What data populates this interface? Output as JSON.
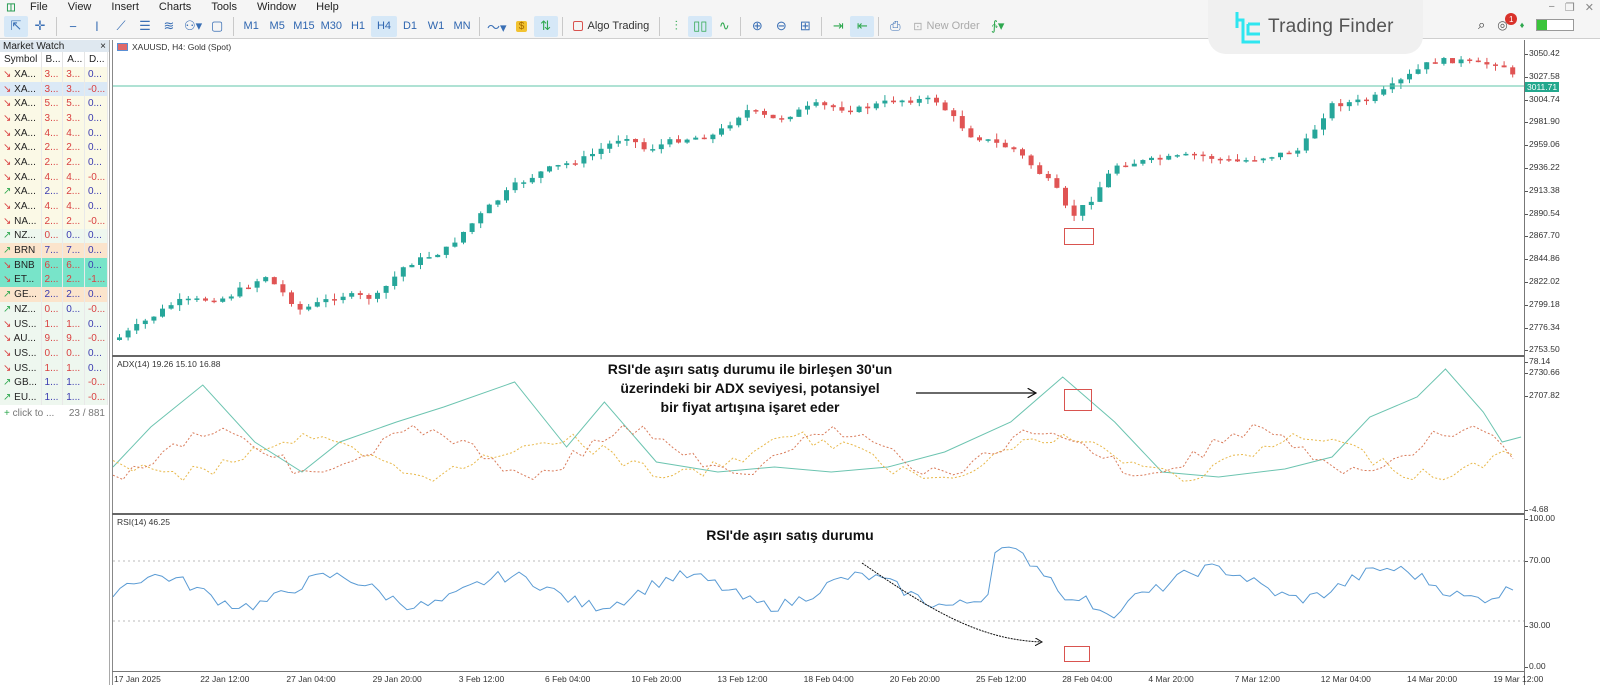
{
  "menu": {
    "items": [
      "File",
      "View",
      "Insert",
      "Charts",
      "Tools",
      "Window",
      "Help"
    ]
  },
  "toolbar": {
    "timeframes": [
      "M1",
      "M5",
      "M15",
      "M30",
      "H1",
      "H4",
      "D1",
      "W1",
      "MN"
    ],
    "active_timeframe": "H4",
    "algo_trading": "Algo Trading",
    "new_order": "New Order"
  },
  "brand": {
    "name": "Trading Finder"
  },
  "notifications": {
    "count": "1"
  },
  "market_watch": {
    "title": "Market Watch",
    "columns": [
      "Symbol",
      "B...",
      "A...",
      "D..."
    ],
    "rows": [
      {
        "dir": "down",
        "sym": "XA...",
        "bid": "3...",
        "ask": "3...",
        "d": "0...",
        "style": "row",
        "bc": "red",
        "ac": "red",
        "dc": "blue"
      },
      {
        "dir": "down",
        "sym": "XA...",
        "bid": "3...",
        "ask": "3...",
        "d": "-0...",
        "style": "sel",
        "bc": "red",
        "ac": "red",
        "dc": "red"
      },
      {
        "dir": "down",
        "sym": "XA...",
        "bid": "5...",
        "ask": "5...",
        "d": "0...",
        "style": "row",
        "bc": "red",
        "ac": "red",
        "dc": "blue"
      },
      {
        "dir": "down",
        "sym": "XA...",
        "bid": "3...",
        "ask": "3...",
        "d": "0...",
        "style": "row",
        "bc": "red",
        "ac": "red",
        "dc": "blue"
      },
      {
        "dir": "down",
        "sym": "XA...",
        "bid": "4...",
        "ask": "4...",
        "d": "0...",
        "style": "row",
        "bc": "red",
        "ac": "red",
        "dc": "blue"
      },
      {
        "dir": "down",
        "sym": "XA...",
        "bid": "2...",
        "ask": "2...",
        "d": "0...",
        "style": "row",
        "bc": "red",
        "ac": "red",
        "dc": "blue"
      },
      {
        "dir": "down",
        "sym": "XA...",
        "bid": "2...",
        "ask": "2...",
        "d": "0...",
        "style": "row",
        "bc": "red",
        "ac": "red",
        "dc": "blue"
      },
      {
        "dir": "down",
        "sym": "XA...",
        "bid": "4...",
        "ask": "4...",
        "d": "-0...",
        "style": "row",
        "bc": "red",
        "ac": "red",
        "dc": "red"
      },
      {
        "dir": "up",
        "sym": "XA...",
        "bid": "2...",
        "ask": "2...",
        "d": "0...",
        "style": "row",
        "bc": "blue",
        "ac": "red",
        "dc": "blue"
      },
      {
        "dir": "down",
        "sym": "XA...",
        "bid": "4...",
        "ask": "4...",
        "d": "0...",
        "style": "row",
        "bc": "red",
        "ac": "red",
        "dc": "blue"
      },
      {
        "dir": "down",
        "sym": "NA...",
        "bid": "2...",
        "ask": "2...",
        "d": "-0...",
        "style": "row",
        "bc": "red",
        "ac": "red",
        "dc": "red"
      },
      {
        "dir": "up",
        "sym": "NZ...",
        "bid": "0...",
        "ask": "0...",
        "d": "0...",
        "style": "green",
        "bc": "red",
        "ac": "blue",
        "dc": "blue"
      },
      {
        "dir": "up",
        "sym": "BRN",
        "bid": "7...",
        "ask": "7...",
        "d": "0...",
        "style": "hl",
        "bc": "blue",
        "ac": "blue",
        "dc": "blue"
      },
      {
        "dir": "down",
        "sym": "BNB",
        "bid": "6...",
        "ask": "6...",
        "d": "0...",
        "style": "teal",
        "bc": "red",
        "ac": "red",
        "dc": "blue"
      },
      {
        "dir": "down",
        "sym": "ET...",
        "bid": "2...",
        "ask": "2...",
        "d": "-1...",
        "style": "teal",
        "bc": "red",
        "ac": "red",
        "dc": "red"
      },
      {
        "dir": "up",
        "sym": "GE...",
        "bid": "2...",
        "ask": "2...",
        "d": "0...",
        "style": "hl",
        "bc": "blue",
        "ac": "blue",
        "dc": "blue"
      },
      {
        "dir": "up",
        "sym": "NZ...",
        "bid": "0...",
        "ask": "0...",
        "d": "-0...",
        "style": "green",
        "bc": "red",
        "ac": "blue",
        "dc": "red"
      },
      {
        "dir": "down",
        "sym": "US...",
        "bid": "1...",
        "ask": "1...",
        "d": "0...",
        "style": "green",
        "bc": "red",
        "ac": "red",
        "dc": "blue"
      },
      {
        "dir": "down",
        "sym": "AU...",
        "bid": "9...",
        "ask": "9...",
        "d": "-0...",
        "style": "green",
        "bc": "red",
        "ac": "red",
        "dc": "red"
      },
      {
        "dir": "down",
        "sym": "US...",
        "bid": "0...",
        "ask": "0...",
        "d": "0...",
        "style": "green",
        "bc": "red",
        "ac": "red",
        "dc": "blue"
      },
      {
        "dir": "down",
        "sym": "US...",
        "bid": "1...",
        "ask": "1...",
        "d": "0...",
        "style": "green",
        "bc": "red",
        "ac": "red",
        "dc": "blue"
      },
      {
        "dir": "up",
        "sym": "GB...",
        "bid": "1...",
        "ask": "1...",
        "d": "-0...",
        "style": "green",
        "bc": "blue",
        "ac": "blue",
        "dc": "red"
      },
      {
        "dir": "up",
        "sym": "EU...",
        "bid": "1...",
        "ask": "1...",
        "d": "-0...",
        "style": "green",
        "bc": "blue",
        "ac": "blue",
        "dc": "red"
      }
    ],
    "add_label": "click to ...",
    "count": "23 / 881"
  },
  "chart": {
    "title": "XAUUSD, H4:  Gold (Spot)",
    "current_price": "3011.71",
    "price_axis": [
      "3050.42",
      "3027.58",
      "3004.74",
      "2981.90",
      "2959.06",
      "2936.22",
      "2913.38",
      "2890.54",
      "2867.70",
      "2844.86",
      "2822.02",
      "2799.18",
      "2776.34",
      "2753.50",
      "2730.66",
      "2707.82"
    ],
    "adx_label": "ADX(14) 19.26 15.10 16.88",
    "adx_axis": [
      "78.14",
      "-4.68"
    ],
    "rsi_label": "RSI(14) 46.25",
    "rsi_axis": [
      "100.00",
      "70.00",
      "30.00",
      "0.00"
    ],
    "time_axis": [
      "17 Jan 2025",
      "22 Jan 12:00",
      "27 Jan 04:00",
      "29 Jan 20:00",
      "3 Feb 12:00",
      "6 Feb 04:00",
      "10 Feb 20:00",
      "13 Feb 12:00",
      "18 Feb 04:00",
      "20 Feb 20:00",
      "25 Feb 12:00",
      "28 Feb 04:00",
      "4 Mar 20:00",
      "7 Mar 12:00",
      "12 Mar 04:00",
      "14 Mar 20:00",
      "19 Mar 12:00"
    ]
  },
  "annotations": {
    "adx_note_1": "RSI'de aşırı satış durumu ile birleşen 30'un",
    "adx_note_2": "üzerindeki bir ADX seviyesi, potansiyel",
    "adx_note_3": "bir fiyat artışına işaret eder",
    "rsi_note": "RSI'de aşırı satış durumu"
  },
  "colors": {
    "bull": "#26a69a",
    "bear": "#e05454",
    "adx": "#6cc4b0",
    "di_plus": "#e8b84a",
    "di_minus": "#d97b5a",
    "rsi": "#5a9bd4",
    "marker": "#d9534f"
  }
}
